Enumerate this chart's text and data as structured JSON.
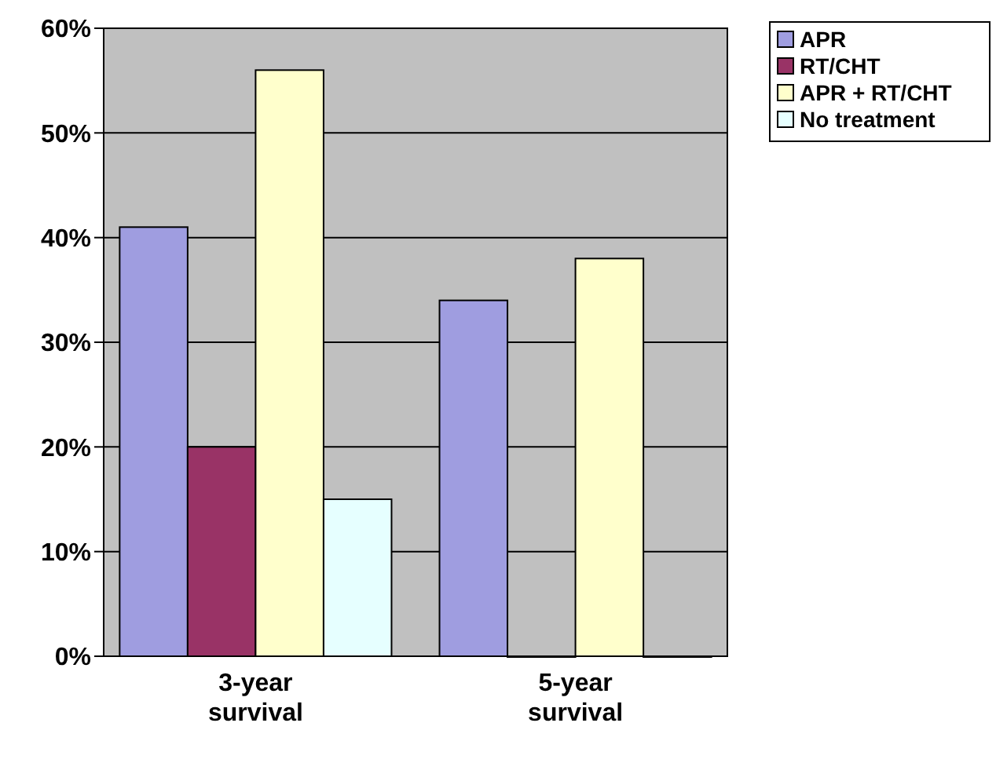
{
  "chart_data": {
    "type": "bar",
    "categories": [
      "3-year survival",
      "5-year survival"
    ],
    "series": [
      {
        "name": "APR",
        "color": "#9f9de0",
        "values": [
          41,
          34
        ]
      },
      {
        "name": "RT/CHT",
        "color": "#993366",
        "values": [
          20,
          0
        ]
      },
      {
        "name": "APR + RT/CHT",
        "color": "#ffffcc",
        "values": [
          56,
          38
        ]
      },
      {
        "name": "No treatment",
        "color": "#e6ffff",
        "values": [
          15,
          0
        ]
      }
    ],
    "ylim": [
      0,
      60
    ],
    "yticks": [
      {
        "value": 0,
        "label": "0%"
      },
      {
        "value": 10,
        "label": "10%"
      },
      {
        "value": 20,
        "label": "20%"
      },
      {
        "value": 30,
        "label": "30%"
      },
      {
        "value": 40,
        "label": "40%"
      },
      {
        "value": 50,
        "label": "50%"
      },
      {
        "value": 60,
        "label": "60%"
      }
    ],
    "grid": "y",
    "legend": "top right"
  }
}
